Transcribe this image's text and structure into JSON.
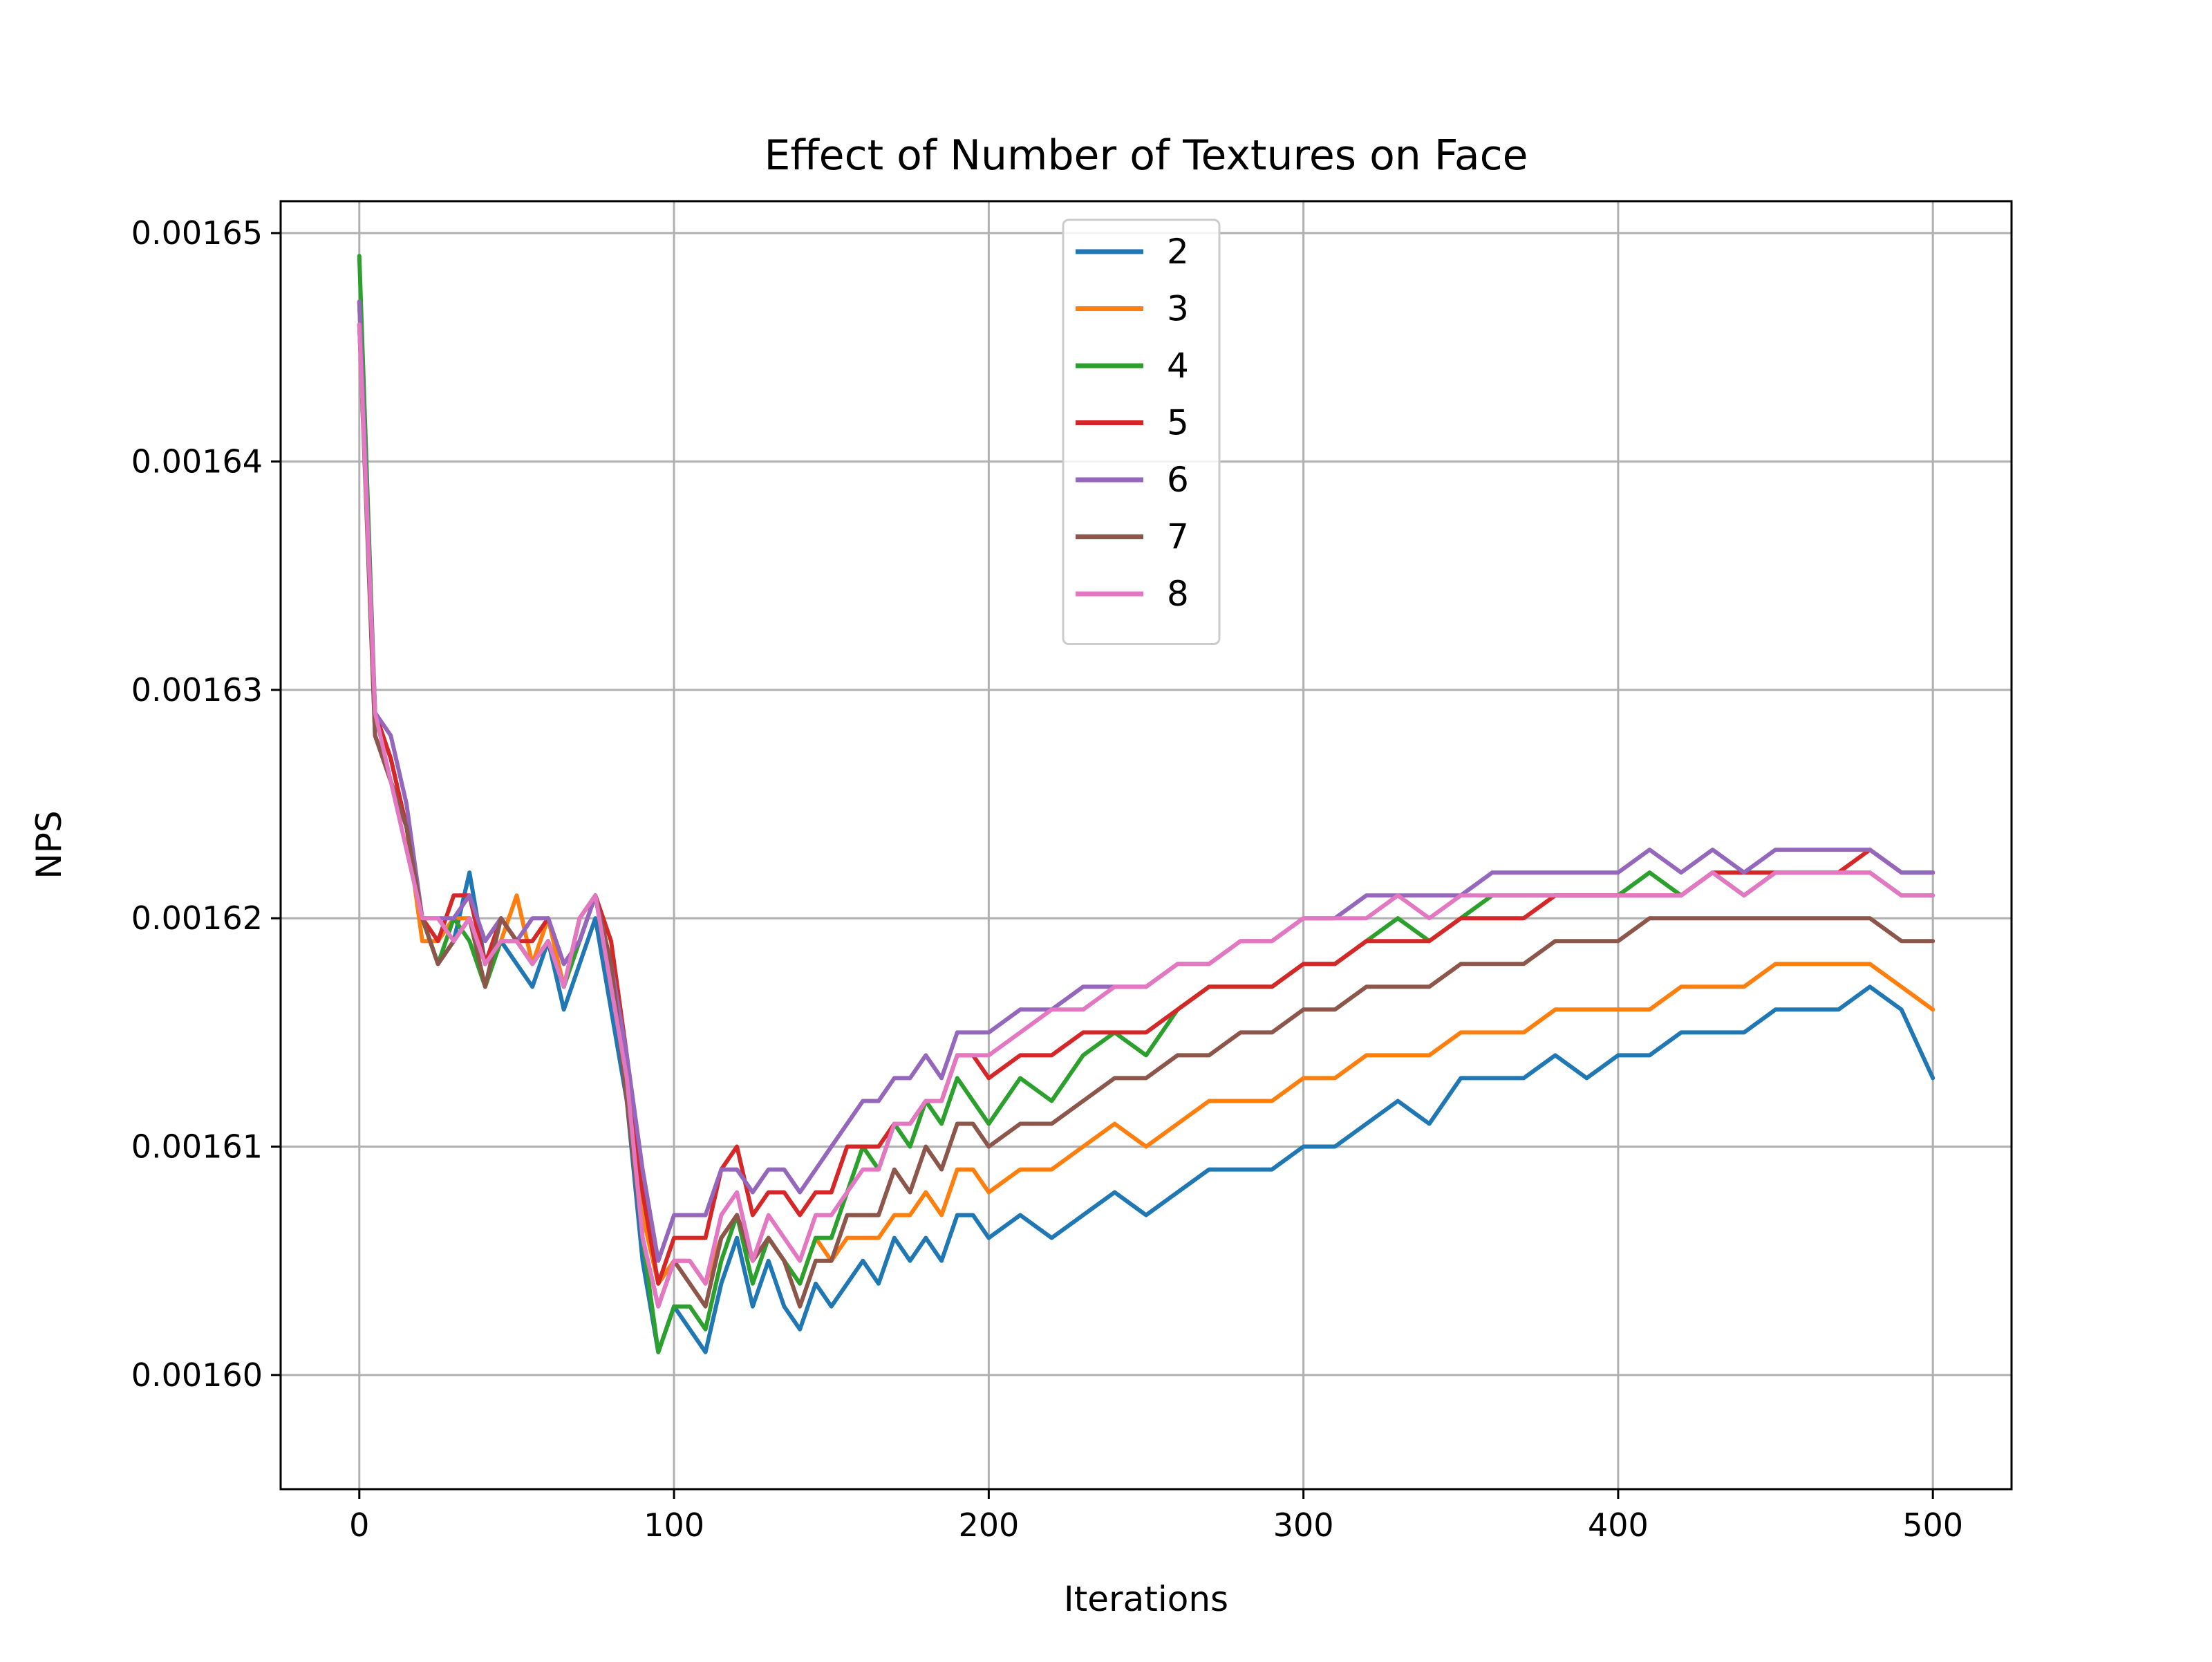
{
  "chart_data": {
    "type": "line",
    "title": "Effect of Number of Textures on Face",
    "xlabel": "Iterations",
    "ylabel": "NPS",
    "xlim": [
      -25,
      525
    ],
    "ylim": [
      0.001595,
      0.0016514
    ],
    "xticks": [
      0,
      100,
      200,
      300,
      400,
      500
    ],
    "xtick_labels": [
      "0",
      "100",
      "200",
      "300",
      "400",
      "500"
    ],
    "yticks": [
      0.0016,
      0.00161,
      0.00162,
      0.00163,
      0.00164,
      0.00165
    ],
    "ytick_labels": [
      "0.00160",
      "0.00161",
      "0.00162",
      "0.00163",
      "0.00164",
      "0.00165"
    ],
    "grid": true,
    "legend_position": "upper center",
    "x": [
      0,
      5,
      10,
      15,
      20,
      25,
      30,
      35,
      40,
      45,
      50,
      55,
      60,
      65,
      70,
      75,
      80,
      85,
      90,
      95,
      100,
      105,
      110,
      115,
      120,
      125,
      130,
      135,
      140,
      145,
      150,
      155,
      160,
      165,
      170,
      175,
      180,
      185,
      190,
      195,
      200,
      210,
      220,
      230,
      240,
      250,
      260,
      270,
      280,
      290,
      300,
      310,
      320,
      330,
      340,
      350,
      360,
      370,
      380,
      390,
      400,
      410,
      420,
      430,
      440,
      450,
      460,
      470,
      480,
      490,
      500
    ],
    "series": [
      {
        "name": "2",
        "color": "#1f77b4",
        "values": [
          0.001647,
          0.001628,
          0.001626,
          0.001624,
          0.00162,
          0.001618,
          0.001619,
          0.001622,
          0.001618,
          0.001619,
          0.001618,
          0.001617,
          0.001619,
          0.001616,
          0.001618,
          0.00162,
          0.001616,
          0.001612,
          0.001605,
          0.001601,
          0.001603,
          0.001602,
          0.001601,
          0.001604,
          0.001606,
          0.001603,
          0.001605,
          0.001603,
          0.001602,
          0.001604,
          0.001603,
          0.001604,
          0.001605,
          0.001604,
          0.001606,
          0.001605,
          0.001606,
          0.001605,
          0.001607,
          0.001607,
          0.001606,
          0.001607,
          0.001606,
          0.001607,
          0.001608,
          0.001607,
          0.001608,
          0.001609,
          0.001609,
          0.001609,
          0.00161,
          0.00161,
          0.001611,
          0.001612,
          0.001611,
          0.001613,
          0.001613,
          0.001613,
          0.001614,
          0.001613,
          0.001614,
          0.001614,
          0.001615,
          0.001615,
          0.001615,
          0.001616,
          0.001616,
          0.001616,
          0.001617,
          0.001616,
          0.001613
        ]
      },
      {
        "name": "3",
        "color": "#ff7f0e",
        "values": [
          0.001647,
          0.001628,
          0.001626,
          0.001624,
          0.001619,
          0.001619,
          0.00162,
          0.00162,
          0.001618,
          0.001619,
          0.001621,
          0.001618,
          0.00162,
          0.001617,
          0.00162,
          0.001621,
          0.001617,
          0.001613,
          0.001607,
          0.001604,
          0.001605,
          0.001605,
          0.001604,
          0.001606,
          0.001607,
          0.001605,
          0.001606,
          0.001605,
          0.001604,
          0.001606,
          0.001605,
          0.001606,
          0.001606,
          0.001606,
          0.001607,
          0.001607,
          0.001608,
          0.001607,
          0.001609,
          0.001609,
          0.001608,
          0.001609,
          0.001609,
          0.00161,
          0.001611,
          0.00161,
          0.001611,
          0.001612,
          0.001612,
          0.001612,
          0.001613,
          0.001613,
          0.001614,
          0.001614,
          0.001614,
          0.001615,
          0.001615,
          0.001615,
          0.001616,
          0.001616,
          0.001616,
          0.001616,
          0.001617,
          0.001617,
          0.001617,
          0.001618,
          0.001618,
          0.001618,
          0.001618,
          0.001617,
          0.001616
        ]
      },
      {
        "name": "4",
        "color": "#2ca02c",
        "values": [
          0.001649,
          0.001629,
          0.001627,
          0.001624,
          0.00162,
          0.001618,
          0.00162,
          0.001619,
          0.001617,
          0.001619,
          0.001619,
          0.001618,
          0.001619,
          0.001617,
          0.001619,
          0.001621,
          0.001617,
          0.001613,
          0.001606,
          0.001601,
          0.001603,
          0.001603,
          0.001602,
          0.001605,
          0.001607,
          0.001604,
          0.001606,
          0.001605,
          0.001604,
          0.001606,
          0.001606,
          0.001608,
          0.00161,
          0.001609,
          0.001611,
          0.00161,
          0.001612,
          0.001611,
          0.001613,
          0.001612,
          0.001611,
          0.001613,
          0.001612,
          0.001614,
          0.001615,
          0.001614,
          0.001616,
          0.001617,
          0.001617,
          0.001617,
          0.001618,
          0.001618,
          0.001619,
          0.00162,
          0.001619,
          0.00162,
          0.001621,
          0.001621,
          0.001621,
          0.001621,
          0.001621,
          0.001622,
          0.001621,
          0.001622,
          0.001621,
          0.001622,
          0.001622,
          0.001622,
          0.001622,
          0.001621,
          0.001621
        ]
      },
      {
        "name": "5",
        "color": "#d62728",
        "values": [
          0.001646,
          0.001629,
          0.001627,
          0.001624,
          0.00162,
          0.001619,
          0.001621,
          0.001621,
          0.001618,
          0.00162,
          0.001619,
          0.001619,
          0.00162,
          0.001618,
          0.001619,
          0.001621,
          0.001619,
          0.001614,
          0.001608,
          0.001604,
          0.001606,
          0.001606,
          0.001606,
          0.001609,
          0.00161,
          0.001607,
          0.001608,
          0.001608,
          0.001607,
          0.001608,
          0.001608,
          0.00161,
          0.00161,
          0.00161,
          0.001611,
          0.001611,
          0.001612,
          0.001612,
          0.001614,
          0.001614,
          0.001613,
          0.001614,
          0.001614,
          0.001615,
          0.001615,
          0.001615,
          0.001616,
          0.001617,
          0.001617,
          0.001617,
          0.001618,
          0.001618,
          0.001619,
          0.001619,
          0.001619,
          0.00162,
          0.00162,
          0.00162,
          0.001621,
          0.001621,
          0.001621,
          0.001621,
          0.001621,
          0.001622,
          0.001622,
          0.001622,
          0.001622,
          0.001622,
          0.001623,
          0.001622,
          0.001622
        ]
      },
      {
        "name": "6",
        "color": "#9467bd",
        "values": [
          0.001647,
          0.001629,
          0.001628,
          0.001625,
          0.00162,
          0.00162,
          0.00162,
          0.001621,
          0.001619,
          0.00162,
          0.001619,
          0.00162,
          0.00162,
          0.001618,
          0.001619,
          0.001621,
          0.001618,
          0.001614,
          0.001609,
          0.001605,
          0.001607,
          0.001607,
          0.001607,
          0.001609,
          0.001609,
          0.001608,
          0.001609,
          0.001609,
          0.001608,
          0.001609,
          0.00161,
          0.001611,
          0.001612,
          0.001612,
          0.001613,
          0.001613,
          0.001614,
          0.001613,
          0.001615,
          0.001615,
          0.001615,
          0.001616,
          0.001616,
          0.001617,
          0.001617,
          0.001617,
          0.001618,
          0.001618,
          0.001619,
          0.001619,
          0.00162,
          0.00162,
          0.001621,
          0.001621,
          0.001621,
          0.001621,
          0.001622,
          0.001622,
          0.001622,
          0.001622,
          0.001622,
          0.001623,
          0.001622,
          0.001623,
          0.001622,
          0.001623,
          0.001623,
          0.001623,
          0.001623,
          0.001622,
          0.001622
        ]
      },
      {
        "name": "7",
        "color": "#8c564b",
        "values": [
          0.001646,
          0.001628,
          0.001626,
          0.001624,
          0.00162,
          0.001618,
          0.001619,
          0.00162,
          0.001617,
          0.00162,
          0.001619,
          0.001618,
          0.001619,
          0.001617,
          0.00162,
          0.001621,
          0.001618,
          0.001612,
          0.001606,
          0.001603,
          0.001605,
          0.001604,
          0.001603,
          0.001606,
          0.001607,
          0.001605,
          0.001606,
          0.001605,
          0.001603,
          0.001605,
          0.001605,
          0.001607,
          0.001607,
          0.001607,
          0.001609,
          0.001608,
          0.00161,
          0.001609,
          0.001611,
          0.001611,
          0.00161,
          0.001611,
          0.001611,
          0.001612,
          0.001613,
          0.001613,
          0.001614,
          0.001614,
          0.001615,
          0.001615,
          0.001616,
          0.001616,
          0.001617,
          0.001617,
          0.001617,
          0.001618,
          0.001618,
          0.001618,
          0.001619,
          0.001619,
          0.001619,
          0.00162,
          0.00162,
          0.00162,
          0.00162,
          0.00162,
          0.00162,
          0.00162,
          0.00162,
          0.001619,
          0.001619
        ]
      },
      {
        "name": "8",
        "color": "#e377c2",
        "values": [
          0.001646,
          0.001629,
          0.001626,
          0.001623,
          0.00162,
          0.00162,
          0.001619,
          0.00162,
          0.001618,
          0.001619,
          0.001619,
          0.001618,
          0.001619,
          0.001617,
          0.00162,
          0.001621,
          0.001617,
          0.001613,
          0.001606,
          0.001603,
          0.001605,
          0.001605,
          0.001604,
          0.001607,
          0.001608,
          0.001605,
          0.001607,
          0.001606,
          0.001605,
          0.001607,
          0.001607,
          0.001608,
          0.001609,
          0.001609,
          0.001611,
          0.001611,
          0.001612,
          0.001612,
          0.001614,
          0.001614,
          0.001614,
          0.001615,
          0.001616,
          0.001616,
          0.001617,
          0.001617,
          0.001618,
          0.001618,
          0.001619,
          0.001619,
          0.00162,
          0.00162,
          0.00162,
          0.001621,
          0.00162,
          0.001621,
          0.001621,
          0.001621,
          0.001621,
          0.001621,
          0.001621,
          0.001621,
          0.001621,
          0.001622,
          0.001621,
          0.001622,
          0.001622,
          0.001622,
          0.001622,
          0.001621,
          0.001621
        ]
      }
    ]
  }
}
